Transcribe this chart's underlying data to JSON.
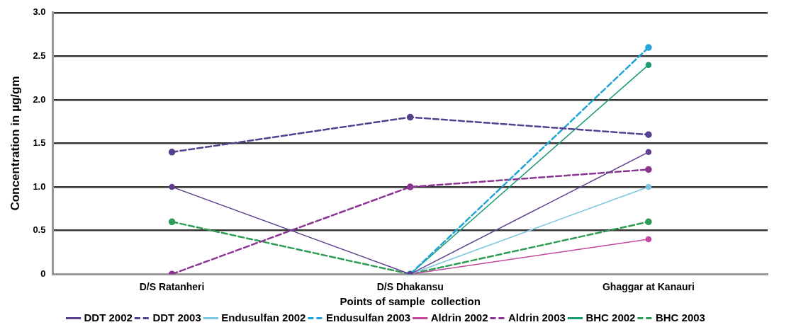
{
  "chart_data": {
    "type": "line",
    "xlabel": "Points of sample  collection",
    "ylabel": "Concentration in µg/gm",
    "categories": [
      "D/S Ratanheri",
      "D/S Dhakansu",
      "Ghaggar at Kanauri"
    ],
    "ylim": [
      0,
      3.0
    ],
    "yticks": [
      {
        "value": 0,
        "label": "0"
      },
      {
        "value": 0.5,
        "label": "0.5"
      },
      {
        "value": 1,
        "label": "1.0"
      },
      {
        "value": 1.5,
        "label": "1.5"
      },
      {
        "value": 2,
        "label": "2.0"
      },
      {
        "value": 2.5,
        "label": "2.5"
      },
      {
        "value": 3,
        "label": "3.0"
      }
    ],
    "grid": "y",
    "legend": "bottom",
    "marker": "circle",
    "series": [
      {
        "name": "DDT 2002",
        "color": "#5e3f8e",
        "line_style": "solid",
        "values": [
          1.0,
          0,
          1.4
        ]
      },
      {
        "name": "DDT 2003",
        "color": "#54408f",
        "line_style": "dashed",
        "values": [
          1.4,
          1.8,
          1.6
        ]
      },
      {
        "name": "Endusulfan 2002",
        "color": "#7cc6e0",
        "line_style": "solid",
        "values": [
          null,
          0,
          1.0
        ]
      },
      {
        "name": "Endusulfan 2003",
        "color": "#22a4d6",
        "line_style": "dashed",
        "values": [
          null,
          0,
          2.6
        ]
      },
      {
        "name": "Aldrin 2002",
        "color": "#c2489c",
        "line_style": "solid",
        "values": [
          null,
          0,
          0.4
        ]
      },
      {
        "name": "Aldrin 2003",
        "color": "#8a3592",
        "line_style": "dashed",
        "values": [
          0,
          1.0,
          1.2
        ]
      },
      {
        "name": "BHC 2002",
        "color": "#1c9a70",
        "line_style": "solid",
        "values": [
          null,
          0,
          2.4
        ]
      },
      {
        "name": "BHC 2003",
        "color": "#2f9c55",
        "line_style": "dashed",
        "values": [
          0.6,
          0,
          0.6
        ]
      }
    ]
  }
}
